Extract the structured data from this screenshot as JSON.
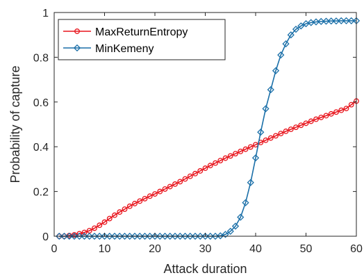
{
  "chart_data": {
    "type": "line",
    "title": "",
    "xlabel": "Attack duration",
    "ylabel": "Probability of capture",
    "xlim": [
      0,
      60
    ],
    "ylim": [
      0,
      1
    ],
    "xticks": [
      0,
      10,
      20,
      30,
      40,
      50,
      60
    ],
    "yticks": [
      0,
      0.2,
      0.4,
      0.6,
      0.8,
      1
    ],
    "xtick_labels": [
      "0",
      "10",
      "20",
      "30",
      "40",
      "50",
      "60"
    ],
    "ytick_labels": [
      "0",
      "0.2",
      "0.4",
      "0.6",
      "0.8",
      "1"
    ],
    "grid": false,
    "legend_position": "top-left",
    "x": [
      1,
      2,
      3,
      4,
      5,
      6,
      7,
      8,
      9,
      10,
      11,
      12,
      13,
      14,
      15,
      16,
      17,
      18,
      19,
      20,
      21,
      22,
      23,
      24,
      25,
      26,
      27,
      28,
      29,
      30,
      31,
      32,
      33,
      34,
      35,
      36,
      37,
      38,
      39,
      40,
      41,
      42,
      43,
      44,
      45,
      46,
      47,
      48,
      49,
      50,
      51,
      52,
      53,
      54,
      55,
      56,
      57,
      58,
      59,
      60
    ],
    "series": [
      {
        "name": "MaxReturnEntropy",
        "color": "#e8141c",
        "marker": "circle",
        "values": [
          0,
          0,
          0.003,
          0.006,
          0.011,
          0.017,
          0.025,
          0.036,
          0.049,
          0.063,
          0.079,
          0.094,
          0.108,
          0.121,
          0.134,
          0.146,
          0.157,
          0.168,
          0.179,
          0.189,
          0.2,
          0.211,
          0.222,
          0.233,
          0.244,
          0.256,
          0.268,
          0.28,
          0.292,
          0.304,
          0.316,
          0.327,
          0.338,
          0.349,
          0.359,
          0.369,
          0.379,
          0.389,
          0.399,
          0.409,
          0.419,
          0.429,
          0.439,
          0.449,
          0.459,
          0.469,
          0.478,
          0.487,
          0.496,
          0.505,
          0.514,
          0.523,
          0.531,
          0.539,
          0.547,
          0.555,
          0.563,
          0.571,
          0.588,
          0.604
        ]
      },
      {
        "name": "MinKemeny",
        "color": "#1a6fa8",
        "marker": "diamond",
        "values": [
          0,
          0,
          0,
          0,
          0,
          0,
          0,
          0,
          0,
          0,
          0,
          0,
          0,
          0,
          0,
          0,
          0,
          0,
          0,
          0,
          0,
          0,
          0,
          0,
          0,
          0,
          0,
          0,
          0,
          0,
          0,
          0,
          0.002,
          0.008,
          0.022,
          0.045,
          0.085,
          0.15,
          0.24,
          0.35,
          0.465,
          0.57,
          0.655,
          0.74,
          0.81,
          0.86,
          0.9,
          0.925,
          0.94,
          0.95,
          0.955,
          0.958,
          0.96,
          0.961,
          0.962,
          0.962,
          0.963,
          0.963,
          0.963,
          0.963
        ]
      }
    ]
  }
}
